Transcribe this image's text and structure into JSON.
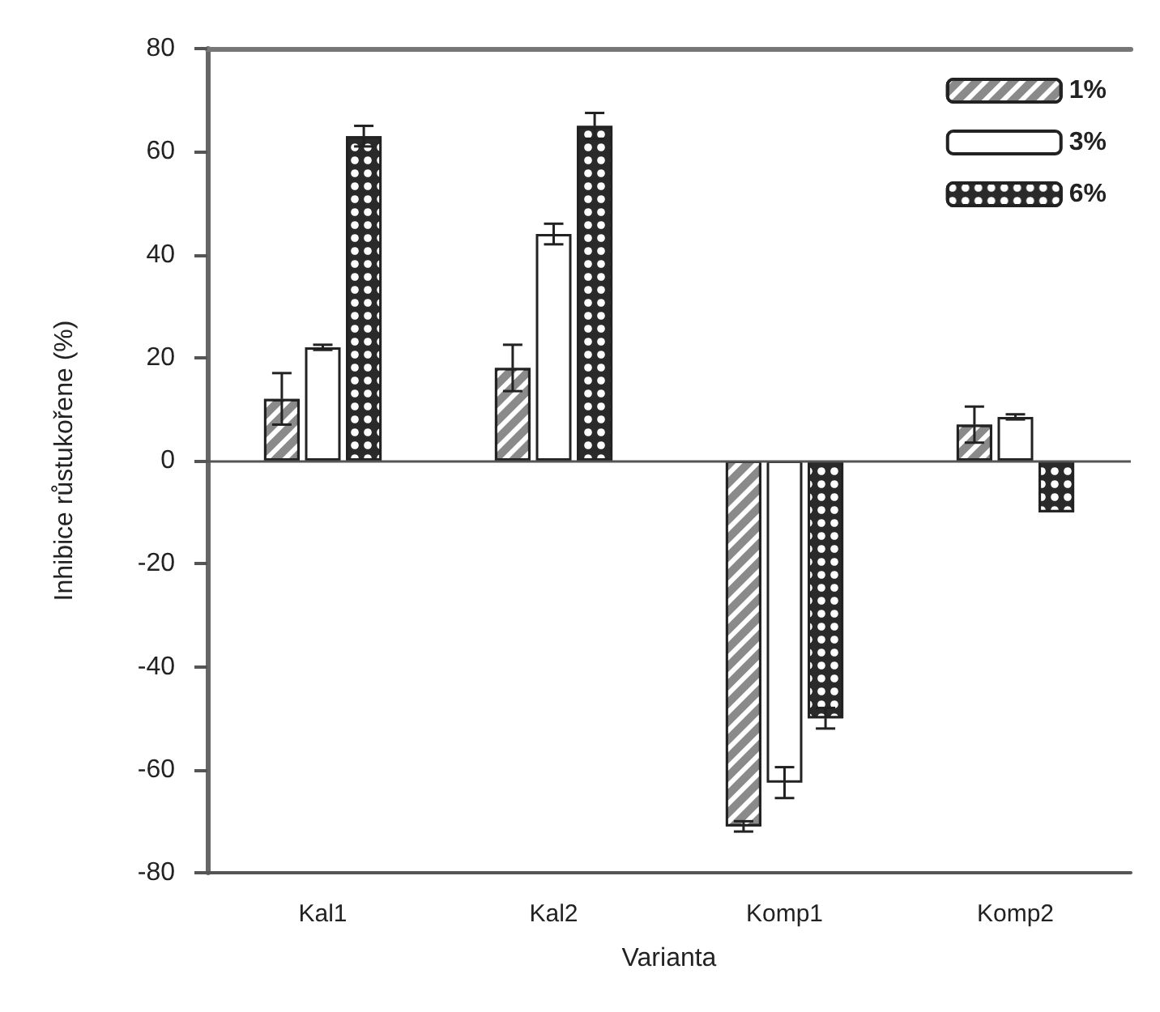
{
  "chart_data": {
    "type": "bar",
    "xlabel": "Varianta",
    "ylabel": "Inhibice růstukořene (%)",
    "categories": [
      "Kal1",
      "Kal2",
      "Komp1",
      "Komp2"
    ],
    "series": [
      {
        "name": "1%",
        "color": "#8a8a8a",
        "values": [
          12,
          18,
          -71,
          7
        ],
        "errors": [
          5,
          4.5,
          1,
          3.5
        ]
      },
      {
        "name": "3%",
        "color": "#ffffff",
        "values": [
          22,
          44,
          -62.5,
          8.5
        ],
        "errors": [
          0.5,
          2,
          3,
          0.5
        ]
      },
      {
        "name": "6%",
        "color": "#2a2a2a",
        "values": [
          63,
          65,
          -50,
          -10
        ],
        "errors": [
          2,
          2.5,
          2,
          null
        ]
      }
    ],
    "ylim": [
      -80,
      80
    ],
    "yticks": [
      -80,
      -60,
      -40,
      -20,
      0,
      20,
      40,
      60,
      80
    ],
    "ref_lines": [
      {
        "axis": "y",
        "value": 0,
        "label": null
      }
    ],
    "legend": "top right"
  }
}
